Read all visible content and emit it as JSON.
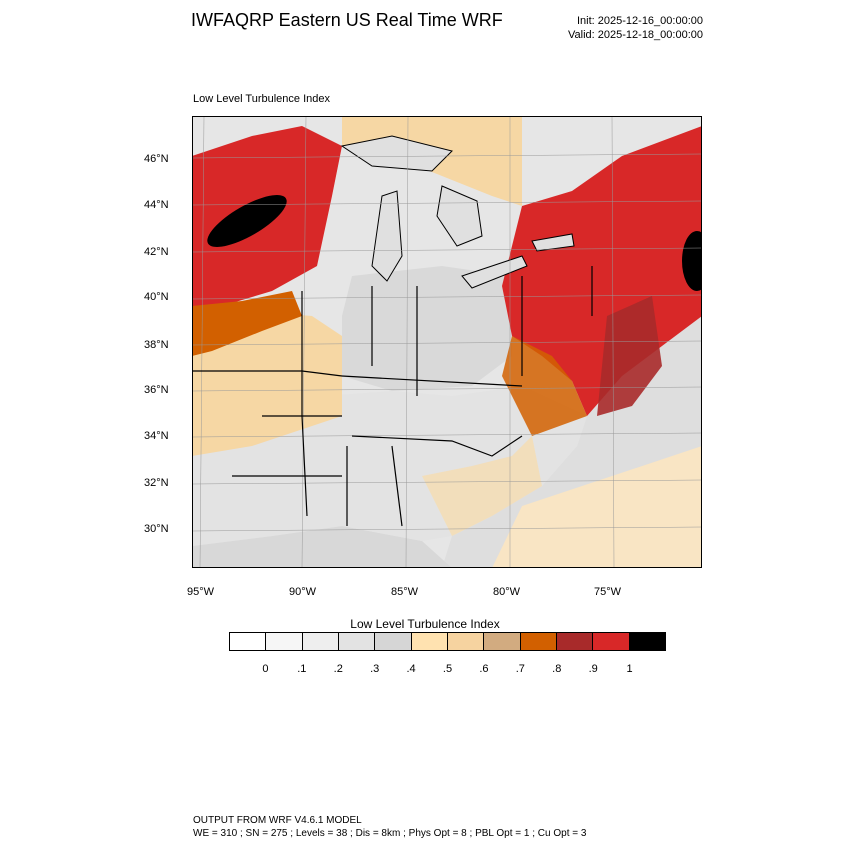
{
  "header": {
    "title": "IWFAQRP Eastern US Real Time WRF",
    "init": "Init: 2025-12-16_00:00:00",
    "valid": "Valid: 2025-12-18_00:00:00"
  },
  "map": {
    "subtitle": "Low Level Turbulence Index",
    "lat_labels": [
      "46°N",
      "44°N",
      "42°N",
      "40°N",
      "38°N",
      "36°N",
      "34°N",
      "32°N",
      "30°N"
    ],
    "lon_labels": [
      "95°W",
      "90°W",
      "85°W",
      "80°W",
      "75°W"
    ],
    "ocean_color": "#d9d9d9",
    "land_color": "#efefef"
  },
  "colorbar": {
    "title": "Low Level Turbulence Index",
    "labels": [
      "0",
      ".1",
      ".2",
      ".3",
      ".4",
      ".5",
      ".6",
      ".7",
      ".8",
      ".9",
      "1"
    ],
    "colors": [
      "#ffffff",
      "#f6f6f6",
      "#eeeeee",
      "#e3e3e3",
      "#d6d6d6",
      "#ffe2b0",
      "#f6d3a0",
      "#d2ab80",
      "#d26000",
      "#a82a2a",
      "#d82828",
      "#000000"
    ]
  },
  "footer": {
    "line1": "OUTPUT FROM WRF V4.6.1 MODEL",
    "line2": "WE = 310 ; SN = 275 ; Levels = 38 ; Dis = 8km ; Phys Opt = 8 ; PBL Opt = 1 ; Cu Opt = 3"
  }
}
